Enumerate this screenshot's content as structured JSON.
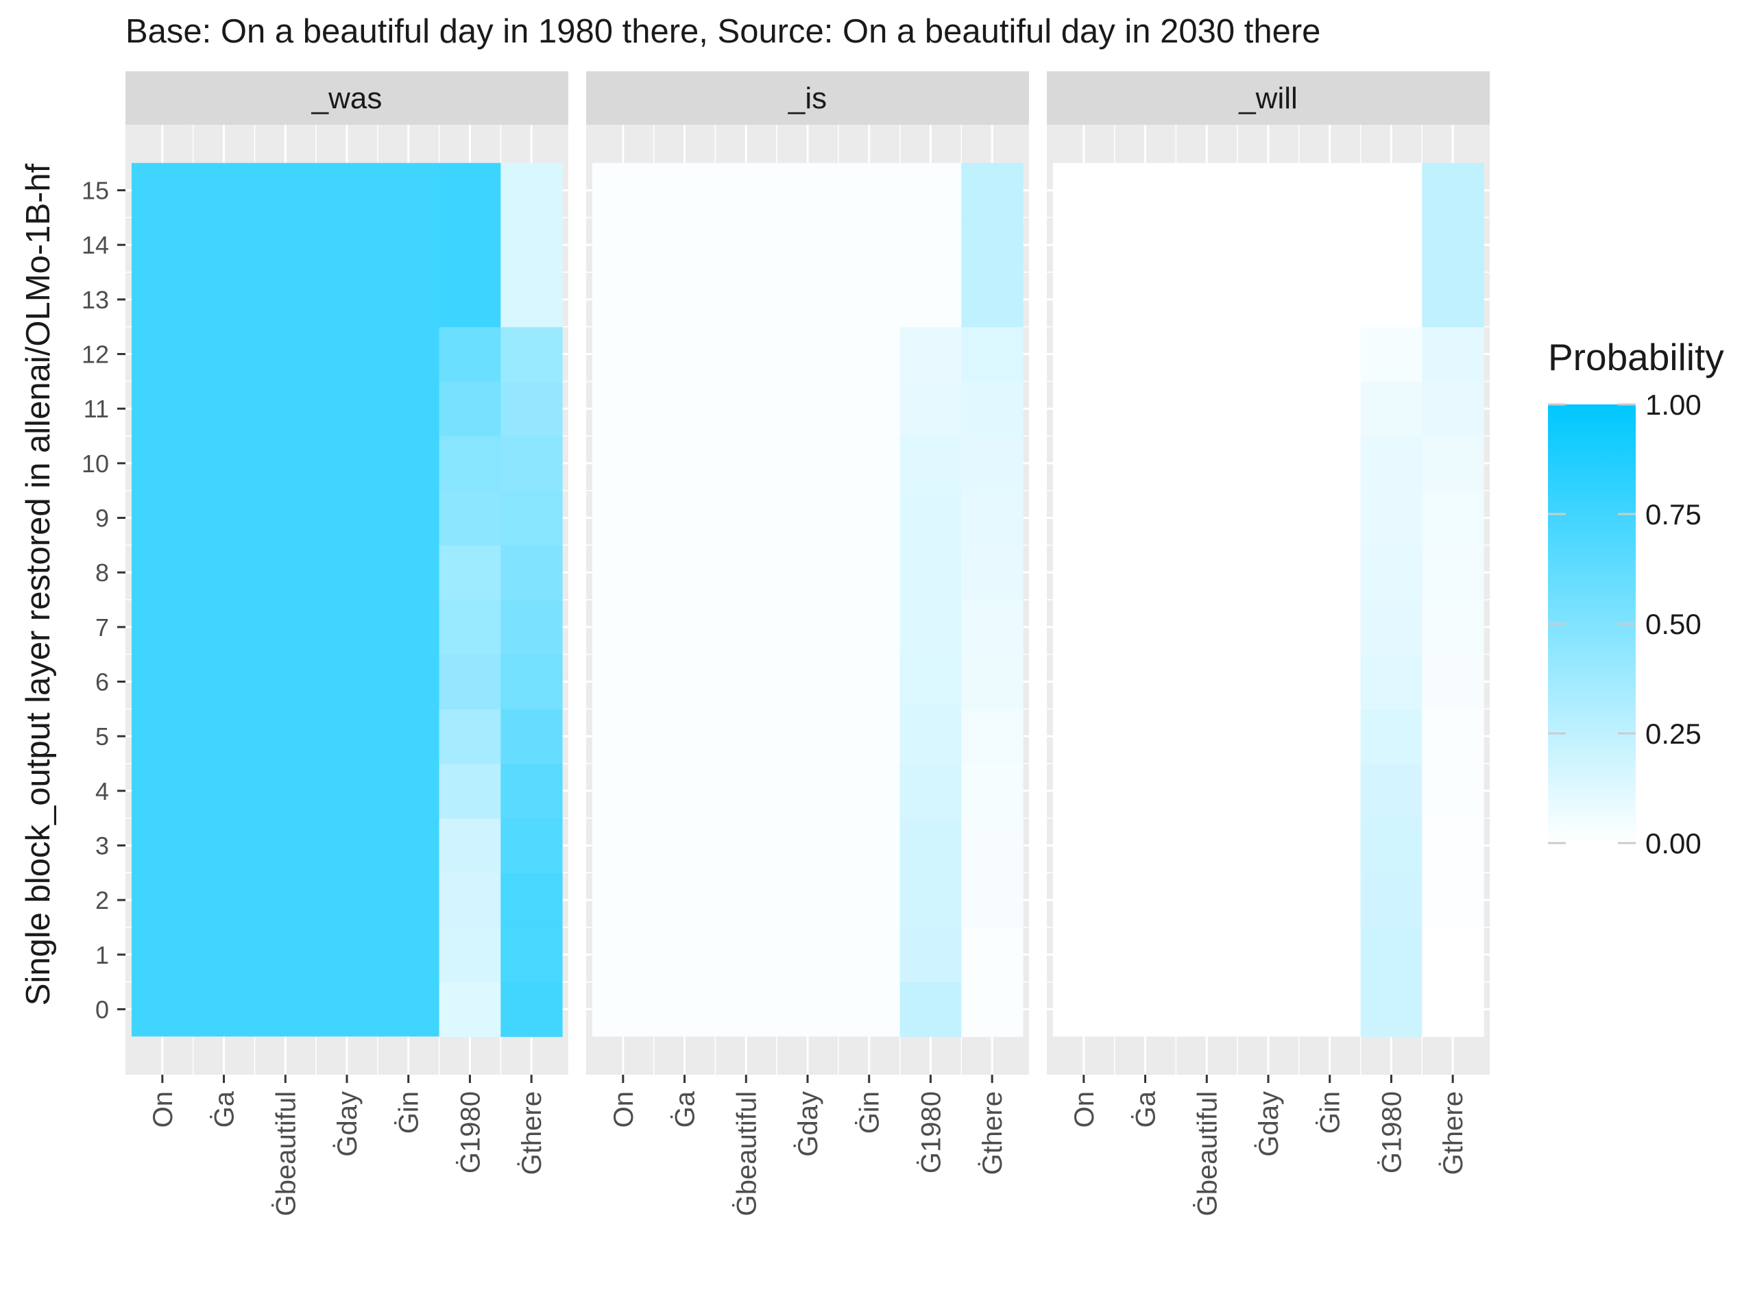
{
  "chart_data": {
    "type": "heatmap",
    "title": "Base: On a beautiful day in 1980 there, Source: On a beautiful day in 2030 there",
    "ylabel": "Single block_output layer restored in allenai/OLMo-1B-hf",
    "xlabel": "",
    "x_categories": [
      "On",
      "Ġa",
      "Ġbeautiful",
      "Ġday",
      "Ġin",
      "Ġ1980",
      "Ġthere"
    ],
    "y_layers": [
      0,
      1,
      2,
      3,
      4,
      5,
      6,
      7,
      8,
      9,
      10,
      11,
      12,
      13,
      14,
      15
    ],
    "legend": {
      "title": "Probability",
      "ticks": [
        "0.00",
        "0.25",
        "0.50",
        "0.75",
        "1.00"
      ],
      "tick_values": [
        0,
        0.25,
        0.5,
        0.75,
        1
      ],
      "range": [
        0,
        1
      ],
      "placement": "right",
      "low_color": "#ffffff",
      "high_color": "#00c7ff"
    },
    "grid_background": "#ebebeb",
    "grid_line_color": "#ffffff",
    "strip_color": "#d9d9d9",
    "panels": [
      {
        "name": "_was",
        "cells": [
          {
            "x": "On",
            "layers": [
              0,
              15
            ],
            "value": 0.75
          },
          {
            "x": "Ġa",
            "layers": [
              0,
              15
            ],
            "value": 0.75
          },
          {
            "x": "Ġbeautiful",
            "layers": [
              0,
              15
            ],
            "value": 0.75
          },
          {
            "x": "Ġday",
            "layers": [
              0,
              15
            ],
            "value": 0.75
          },
          {
            "x": "Ġin",
            "layers": [
              0,
              15
            ],
            "value": 0.75
          },
          {
            "x": "Ġ1980",
            "values": [
              0.13,
              0.16,
              0.17,
              0.19,
              0.28,
              0.35,
              0.42,
              0.4,
              0.38,
              0.45,
              0.47,
              0.53,
              0.58,
              0.76,
              0.76,
              0.76
            ]
          },
          {
            "x": "Ġthere",
            "values": [
              0.74,
              0.72,
              0.72,
              0.68,
              0.65,
              0.6,
              0.55,
              0.52,
              0.5,
              0.47,
              0.45,
              0.42,
              0.4,
              0.15,
              0.15,
              0.15
            ]
          }
        ]
      },
      {
        "name": "_is",
        "cells": [
          {
            "x": "On",
            "layers": [
              0,
              15
            ],
            "value": 0.02
          },
          {
            "x": "Ġa",
            "layers": [
              0,
              15
            ],
            "value": 0.02
          },
          {
            "x": "Ġbeautiful",
            "layers": [
              0,
              15
            ],
            "value": 0.02
          },
          {
            "x": "Ġday",
            "layers": [
              0,
              15
            ],
            "value": 0.02
          },
          {
            "x": "Ġin",
            "layers": [
              0,
              15
            ],
            "value": 0.02
          },
          {
            "x": "Ġ1980",
            "values": [
              0.24,
              0.19,
              0.18,
              0.18,
              0.16,
              0.15,
              0.14,
              0.13,
              0.13,
              0.13,
              0.12,
              0.1,
              0.09,
              0.02,
              0.02,
              0.02
            ]
          },
          {
            "x": "Ġthere",
            "values": [
              0.02,
              0.02,
              0.03,
              0.03,
              0.04,
              0.05,
              0.07,
              0.08,
              0.09,
              0.1,
              0.11,
              0.12,
              0.14,
              0.25,
              0.25,
              0.25
            ]
          }
        ]
      },
      {
        "name": "_will",
        "cells": [
          {
            "x": "On",
            "layers": [
              0,
              15
            ],
            "value": 0.0
          },
          {
            "x": "Ġa",
            "layers": [
              0,
              15
            ],
            "value": 0.0
          },
          {
            "x": "Ġbeautiful",
            "layers": [
              0,
              15
            ],
            "value": 0.0
          },
          {
            "x": "Ġday",
            "layers": [
              0,
              15
            ],
            "value": 0.0
          },
          {
            "x": "Ġin",
            "layers": [
              0,
              15
            ],
            "value": 0.0
          },
          {
            "x": "Ġ1980",
            "values": [
              0.2,
              0.2,
              0.19,
              0.18,
              0.17,
              0.15,
              0.12,
              0.11,
              0.1,
              0.09,
              0.09,
              0.07,
              0.04,
              0.0,
              0.0,
              0.0
            ]
          },
          {
            "x": "Ġthere",
            "values": [
              0.0,
              0.0,
              0.01,
              0.01,
              0.02,
              0.02,
              0.03,
              0.04,
              0.05,
              0.06,
              0.07,
              0.09,
              0.11,
              0.25,
              0.25,
              0.25
            ]
          }
        ]
      }
    ]
  }
}
